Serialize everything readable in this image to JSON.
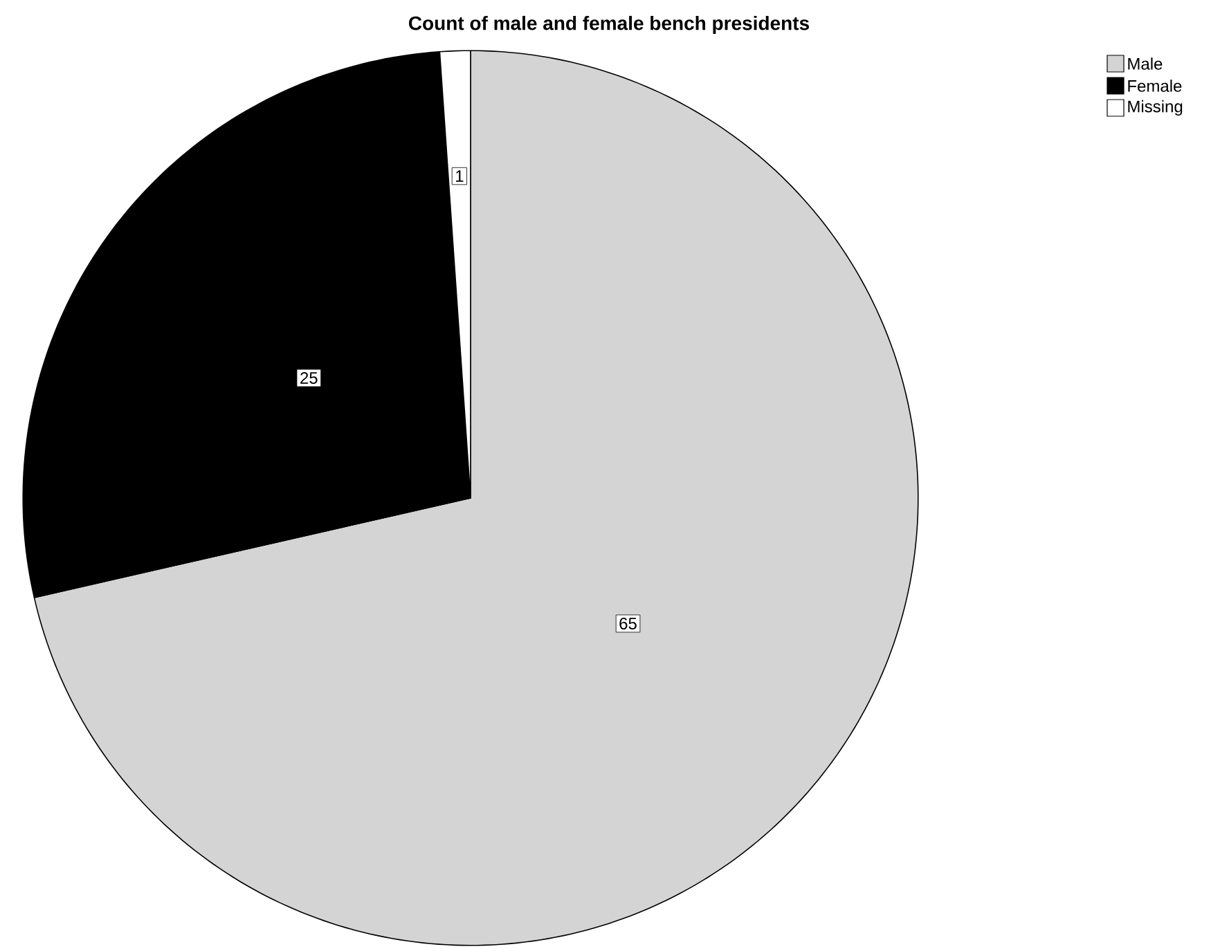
{
  "chart_data": {
    "type": "pie",
    "title": "Count of male and female bench presidents",
    "categories": [
      "Male",
      "Female",
      "Missing"
    ],
    "values": [
      65,
      25,
      1
    ],
    "colors": [
      "#d4d4d4",
      "#000000",
      "#ffffff"
    ],
    "data_labels": true,
    "legend": "top right"
  }
}
